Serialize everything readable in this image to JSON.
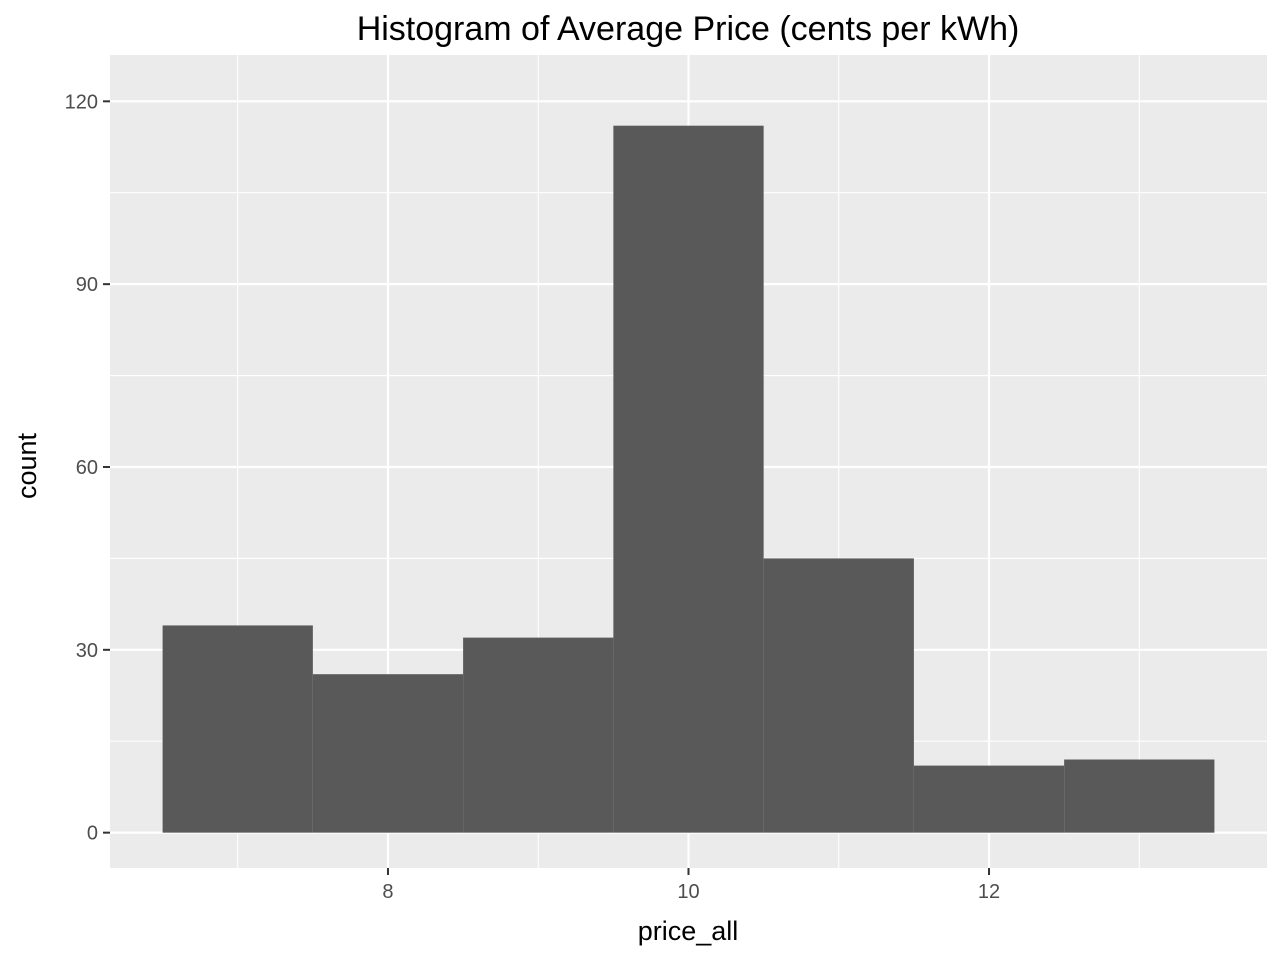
{
  "chart_data": {
    "type": "bar",
    "title": "Histogram of Average Price (cents per kWh)",
    "xlabel": "price_all",
    "ylabel": "count",
    "bins": [
      {
        "x0": 6.5,
        "x1": 7.5,
        "count": 34
      },
      {
        "x0": 7.5,
        "x1": 8.5,
        "count": 26
      },
      {
        "x0": 8.5,
        "x1": 9.5,
        "count": 32
      },
      {
        "x0": 9.5,
        "x1": 10.5,
        "count": 116
      },
      {
        "x0": 10.5,
        "x1": 11.5,
        "count": 45
      },
      {
        "x0": 11.5,
        "x1": 12.5,
        "count": 11
      },
      {
        "x0": 12.5,
        "x1": 13.5,
        "count": 12
      }
    ],
    "xlim": [
      6.15,
      13.85
    ],
    "ylim": [
      -5.8,
      127.6
    ],
    "x_ticks": [
      8,
      10,
      12
    ],
    "x_minor_ticks": [
      7,
      9,
      11,
      13
    ],
    "y_ticks": [
      0,
      30,
      60,
      90,
      120
    ],
    "y_minor_ticks": [
      15,
      45,
      75,
      105
    ],
    "x_tick_labels": [
      "8",
      "10",
      "12"
    ],
    "y_tick_labels": [
      "0",
      "30",
      "60",
      "90",
      "120"
    ],
    "grid": true,
    "legend": "none"
  },
  "colors": {
    "panel_background": "#ebebeb",
    "grid_line": "#ffffff",
    "bar_fill": "#595959",
    "tick_mark": "#333333"
  }
}
